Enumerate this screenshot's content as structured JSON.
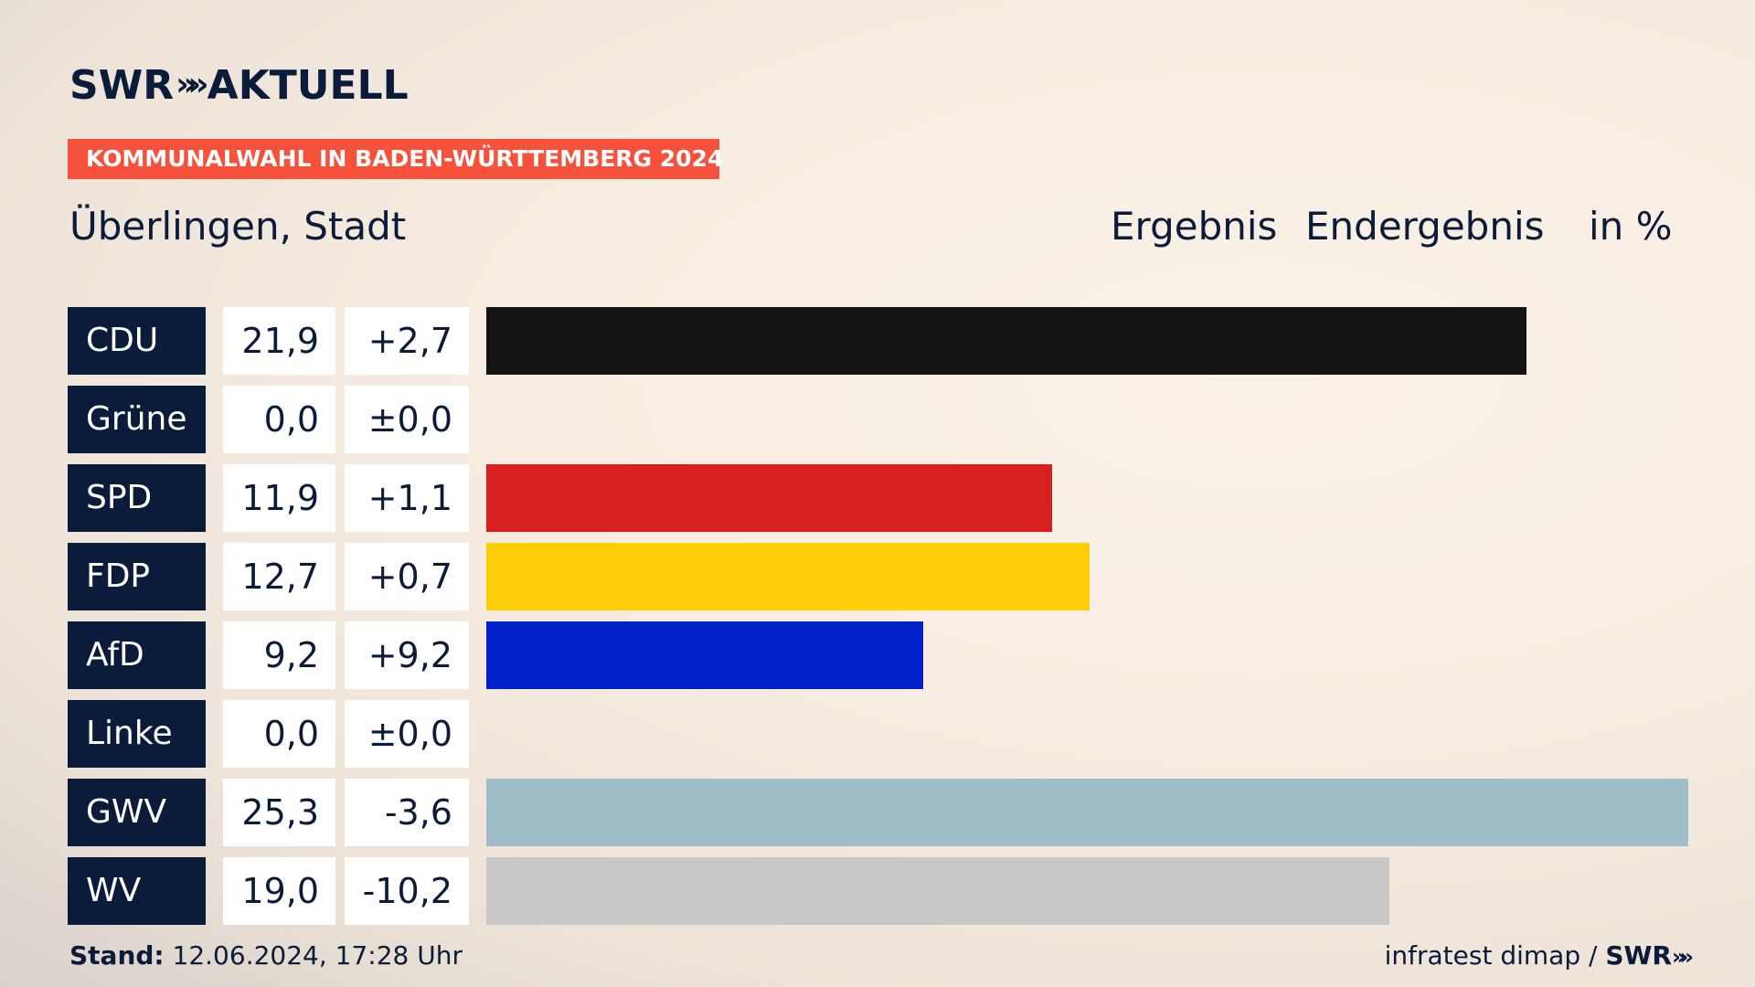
{
  "brand": {
    "name_left": "SWR",
    "arrows": "»",
    "name_right": "AKTUELL"
  },
  "banner": "KOMMUNALWAHL IN BADEN-WÜRTTEMBERG 2024",
  "place": "Überlingen, Stadt",
  "headers": {
    "ergebnis": "Ergebnis",
    "endergebnis": "Endergebnis",
    "unit": "in %"
  },
  "footer": {
    "stand_label": "Stand:",
    "stand_value": "12.06.2024, 17:28 Uhr",
    "source": "infratest dimap /",
    "source_brand": "SWR",
    "source_arrows": "»"
  },
  "chart_data": {
    "type": "bar",
    "orientation": "horizontal",
    "title": "Kommunalwahl in Baden-Württemberg 2024 – Überlingen, Stadt",
    "unit": "%",
    "xlim": [
      0,
      25.3
    ],
    "categories": [
      "CDU",
      "Grüne",
      "SPD",
      "FDP",
      "AfD",
      "Linke",
      "GWV",
      "WV"
    ],
    "values": [
      21.9,
      0.0,
      11.9,
      12.7,
      9.2,
      0.0,
      25.3,
      19.0
    ],
    "values_text": [
      "21,9",
      "0,0",
      "11,9",
      "12,7",
      "9,2",
      "0,0",
      "25,3",
      "19,0"
    ],
    "changes_text": [
      "+2,7",
      "±0,0",
      "+1,1",
      "+0,7",
      "+9,2",
      "±0,0",
      "-3,6",
      "-10,2"
    ],
    "colors": [
      "#141414",
      "#1aa037",
      "#d8201f",
      "#ffcd0a",
      "#0021c8",
      "#be3075",
      "#a0bec7",
      "#c8c8c8"
    ]
  }
}
